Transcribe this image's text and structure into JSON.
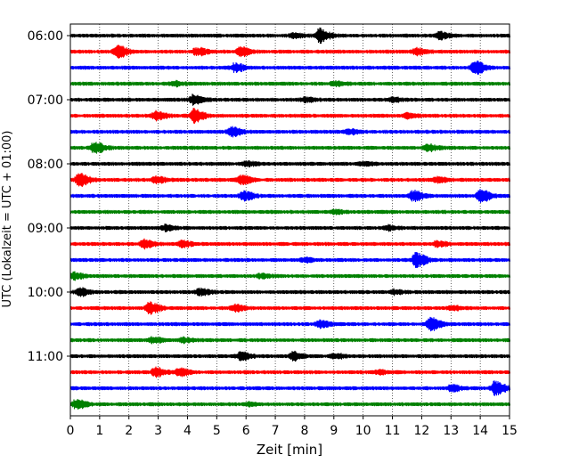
{
  "chart_data": {
    "type": "line",
    "title": "",
    "xlabel": "Zeit  [min]",
    "ylabel": "UTC (Lokalzeit = UTC + 01:00)",
    "xlim": [
      0,
      15
    ],
    "x_ticks": [
      0,
      1,
      2,
      3,
      4,
      5,
      6,
      7,
      8,
      9,
      10,
      11,
      12,
      13,
      14,
      15
    ],
    "grid": "vertical-dotted",
    "row_interval_min": 15,
    "row_colors": [
      "#000000",
      "#ff0000",
      "#0000ff",
      "#008000"
    ],
    "y_tick_labels": [
      {
        "label": "06:00",
        "row": 0
      },
      {
        "label": "07:00",
        "row": 4
      },
      {
        "label": "08:00",
        "row": 8
      },
      {
        "label": "09:00",
        "row": 12
      },
      {
        "label": "10:00",
        "row": 16
      },
      {
        "label": "11:00",
        "row": 20
      }
    ],
    "traces": [
      {
        "start": "06:00",
        "color": "#000000",
        "events": [
          [
            8.5,
            2.2
          ],
          [
            12.6,
            1.0
          ],
          [
            7.6,
            0.6
          ]
        ]
      },
      {
        "start": "06:15",
        "color": "#ff0000",
        "events": [
          [
            1.6,
            2.0
          ],
          [
            4.3,
            1.2
          ],
          [
            5.8,
            1.4
          ],
          [
            11.8,
            1.0
          ]
        ]
      },
      {
        "start": "06:30",
        "color": "#0000ff",
        "events": [
          [
            5.6,
            1.3
          ],
          [
            13.8,
            2.2
          ]
        ]
      },
      {
        "start": "06:45",
        "color": "#008000",
        "events": [
          [
            3.5,
            0.7
          ],
          [
            9.0,
            0.6
          ]
        ]
      },
      {
        "start": "07:00",
        "color": "#000000",
        "events": [
          [
            4.2,
            1.5
          ],
          [
            8.0,
            0.7
          ],
          [
            11.0,
            0.6
          ]
        ]
      },
      {
        "start": "07:15",
        "color": "#ff0000",
        "events": [
          [
            2.9,
            1.3
          ],
          [
            4.2,
            2.2
          ],
          [
            11.5,
            0.8
          ]
        ]
      },
      {
        "start": "07:30",
        "color": "#0000ff",
        "events": [
          [
            5.5,
            1.6
          ],
          [
            9.5,
            0.7
          ]
        ]
      },
      {
        "start": "07:45",
        "color": "#008000",
        "events": [
          [
            0.8,
            1.8
          ],
          [
            12.2,
            1.0
          ]
        ]
      },
      {
        "start": "08:00",
        "color": "#000000",
        "events": [
          [
            6.0,
            0.6
          ],
          [
            10.0,
            0.6
          ]
        ]
      },
      {
        "start": "08:15",
        "color": "#ff0000",
        "events": [
          [
            0.3,
            2.2
          ],
          [
            2.9,
            1.1
          ],
          [
            5.8,
            1.5
          ],
          [
            12.5,
            0.8
          ]
        ]
      },
      {
        "start": "08:30",
        "color": "#0000ff",
        "events": [
          [
            5.9,
            1.4
          ],
          [
            11.7,
            1.6
          ],
          [
            14.0,
            2.0
          ]
        ]
      },
      {
        "start": "08:45",
        "color": "#008000",
        "events": [
          [
            9.0,
            0.5
          ]
        ]
      },
      {
        "start": "09:00",
        "color": "#000000",
        "events": [
          [
            3.2,
            0.8
          ],
          [
            10.8,
            0.7
          ]
        ]
      },
      {
        "start": "09:15",
        "color": "#ff0000",
        "events": [
          [
            2.5,
            1.3
          ],
          [
            3.8,
            1.0
          ],
          [
            12.5,
            0.8
          ]
        ]
      },
      {
        "start": "09:30",
        "color": "#0000ff",
        "events": [
          [
            11.8,
            2.2
          ],
          [
            8.0,
            0.6
          ]
        ]
      },
      {
        "start": "09:45",
        "color": "#008000",
        "events": [
          [
            0.1,
            1.0
          ],
          [
            6.5,
            0.6
          ]
        ]
      },
      {
        "start": "10:00",
        "color": "#000000",
        "events": [
          [
            0.3,
            1.2
          ],
          [
            4.4,
            1.0
          ],
          [
            11.0,
            0.7
          ]
        ]
      },
      {
        "start": "10:15",
        "color": "#ff0000",
        "events": [
          [
            2.7,
            1.8
          ],
          [
            5.6,
            1.0
          ],
          [
            13.0,
            0.7
          ]
        ]
      },
      {
        "start": "10:30",
        "color": "#0000ff",
        "events": [
          [
            8.5,
            1.0
          ],
          [
            12.3,
            2.2
          ]
        ]
      },
      {
        "start": "10:45",
        "color": "#008000",
        "events": [
          [
            2.8,
            0.9
          ],
          [
            3.8,
            0.7
          ]
        ]
      },
      {
        "start": "11:00",
        "color": "#000000",
        "events": [
          [
            5.8,
            1.2
          ],
          [
            7.6,
            1.4
          ],
          [
            9.0,
            0.8
          ]
        ]
      },
      {
        "start": "11:15",
        "color": "#ff0000",
        "events": [
          [
            2.9,
            1.4
          ],
          [
            3.7,
            1.2
          ],
          [
            10.5,
            0.6
          ]
        ]
      },
      {
        "start": "11:30",
        "color": "#0000ff",
        "events": [
          [
            13.0,
            0.9
          ],
          [
            14.5,
            2.2
          ]
        ]
      },
      {
        "start": "11:45",
        "color": "#008000",
        "events": [
          [
            0.2,
            1.6
          ],
          [
            6.0,
            0.5
          ]
        ]
      }
    ]
  }
}
